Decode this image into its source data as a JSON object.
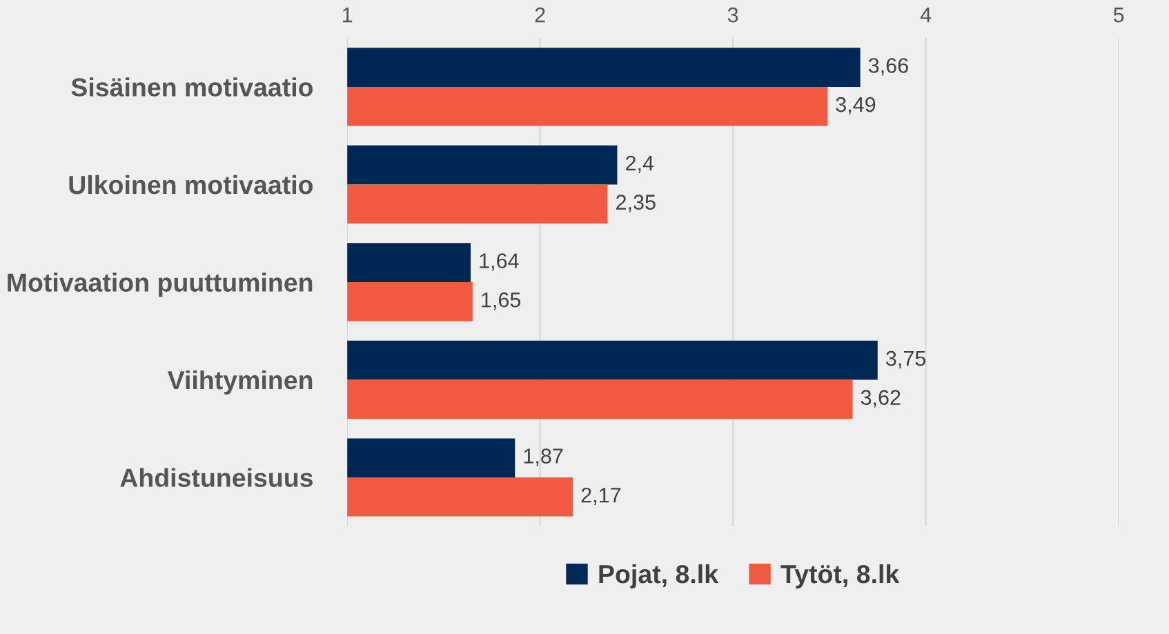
{
  "chart_data": {
    "type": "bar",
    "orientation": "horizontal",
    "categories": [
      "Sisäinen motivaatio",
      "Ulkoinen motivaatio",
      "Motivaation puuttuminen",
      "Viihtyminen",
      "Ahdistuneisuus"
    ],
    "series": [
      {
        "name": "Pojat, 8.lk",
        "color": "#002855",
        "values": [
          3.66,
          2.4,
          1.64,
          3.75,
          1.87
        ],
        "value_labels": [
          "3,66",
          "2,4",
          "1,64",
          "3,75",
          "1,87"
        ]
      },
      {
        "name": "Tytöt, 8.lk",
        "color": "#f15a40",
        "values": [
          3.49,
          2.35,
          1.65,
          3.62,
          2.17
        ],
        "value_labels": [
          "3,49",
          "2,35",
          "1,65",
          "3,62",
          "2,17"
        ]
      }
    ],
    "xlim": [
      1,
      5
    ],
    "xticks": [
      1,
      2,
      3,
      4,
      5
    ],
    "grid": "x",
    "legend": "bottom"
  }
}
